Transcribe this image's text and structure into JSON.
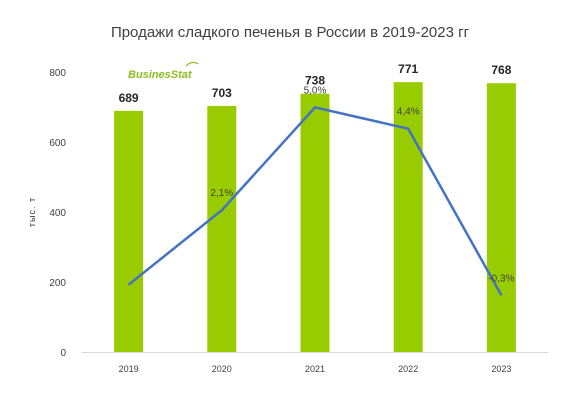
{
  "chart_data": {
    "type": "bar",
    "title": "Продажи сладкого печенья в России в 2019-2023 гг",
    "ylabel": "тыс. т",
    "xlabel": "",
    "ylim": [
      0,
      800
    ],
    "yticks": [
      0,
      200,
      400,
      600,
      800
    ],
    "categories": [
      "2019",
      "2020",
      "2021",
      "2022",
      "2023"
    ],
    "series": [
      {
        "type": "bar",
        "values": [
          689,
          703,
          738,
          771,
          768
        ],
        "labels": [
          "689",
          "703",
          "738",
          "771",
          "768"
        ],
        "color": "#99cc00"
      },
      {
        "type": "line",
        "values": [
          null,
          2.1,
          5.0,
          4.4,
          -0.3
        ],
        "labels": [
          "",
          "2,1%",
          "5,0%",
          "4,4%",
          "-0,3%"
        ],
        "color": "#4472c4"
      }
    ],
    "grid": false,
    "legend": "none"
  },
  "logo": {
    "text": "BusinesStat"
  }
}
